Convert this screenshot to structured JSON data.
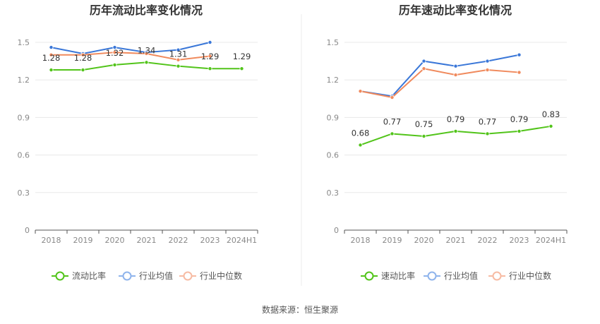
{
  "colors": {
    "primary": "#52c41a",
    "industry_avg": "#3a77d8",
    "industry_median": "#f08a5d",
    "legend_avg": "#8fb4ec",
    "legend_median": "#f7bba3",
    "grid": "#e8e8e8",
    "axis": "#555555",
    "divider": "#eeeeee"
  },
  "chart_data": [
    {
      "type": "line",
      "title": "历年流动比率变化情况",
      "categories": [
        "2018",
        "2019",
        "2020",
        "2021",
        "2022",
        "2023",
        "2024H1"
      ],
      "ylim": [
        0,
        1.5
      ],
      "yticks": [
        "0",
        "0.3",
        "0.6",
        "0.9",
        "1.2",
        "1.5"
      ],
      "grid": true,
      "legend_position": "bottom",
      "series": [
        {
          "name": "流动比率",
          "values": [
            1.28,
            1.28,
            1.32,
            1.34,
            1.31,
            1.29,
            1.29
          ],
          "labels": [
            "1.28",
            "1.28",
            "1.32",
            "1.34",
            "1.31",
            "1.29",
            "1.29"
          ],
          "color_key": "primary"
        },
        {
          "name": "行业均值",
          "values": [
            1.46,
            1.41,
            1.46,
            1.42,
            1.44,
            1.5,
            null
          ],
          "color_key": "industry_avg"
        },
        {
          "name": "行业中位数",
          "values": [
            1.4,
            1.4,
            1.42,
            1.41,
            1.36,
            1.39,
            null
          ],
          "color_key": "industry_median"
        }
      ]
    },
    {
      "type": "line",
      "title": "历年速动比率变化情况",
      "categories": [
        "2018",
        "2019",
        "2020",
        "2021",
        "2022",
        "2023",
        "2024H1"
      ],
      "ylim": [
        0,
        1.5
      ],
      "yticks": [
        "0",
        "0.3",
        "0.6",
        "0.9",
        "1.2",
        "1.5"
      ],
      "grid": true,
      "legend_position": "bottom",
      "series": [
        {
          "name": "速动比率",
          "values": [
            0.68,
            0.77,
            0.75,
            0.79,
            0.77,
            0.79,
            0.83
          ],
          "labels": [
            "0.68",
            "0.77",
            "0.75",
            "0.79",
            "0.77",
            "0.79",
            "0.83"
          ],
          "color_key": "primary"
        },
        {
          "name": "行业均值",
          "values": [
            1.11,
            1.07,
            1.35,
            1.31,
            1.35,
            1.4,
            null
          ],
          "color_key": "industry_avg"
        },
        {
          "name": "行业中位数",
          "values": [
            1.11,
            1.06,
            1.29,
            1.24,
            1.28,
            1.26,
            null
          ],
          "color_key": "industry_median"
        }
      ]
    }
  ],
  "footer": {
    "source": "数据来源：恒生聚源"
  }
}
